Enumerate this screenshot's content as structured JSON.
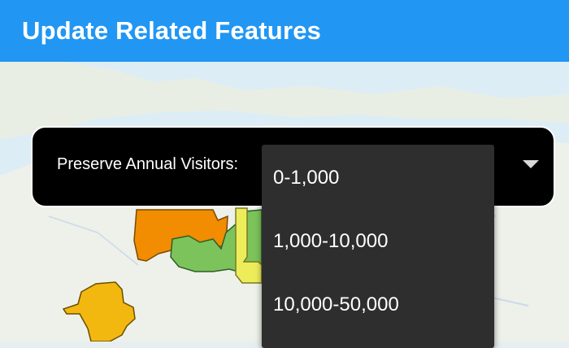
{
  "app": {
    "title": "Update Related Features"
  },
  "selector": {
    "label": "Preserve Annual Visitors:"
  },
  "dropdown": {
    "options": [
      "0-1,000",
      "1,000-10,000",
      "10,000-50,000"
    ]
  },
  "colors": {
    "app_bar": "#2196f3",
    "feature_orange": "#f28c00",
    "feature_green": "#7dc35c",
    "feature_yellow": "#eded5c",
    "feature_gold": "#f2b80f"
  }
}
